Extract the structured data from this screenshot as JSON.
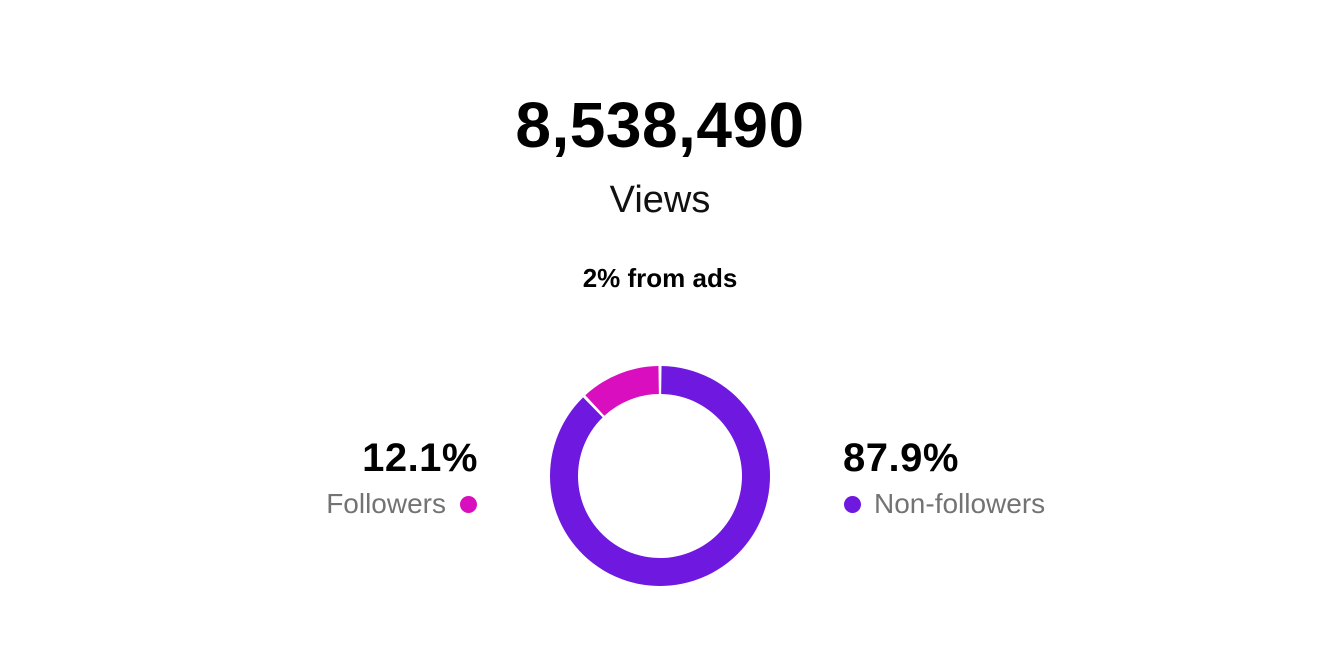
{
  "summary": {
    "total_views": "8,538,490",
    "views_label": "Views",
    "ads_note": "2% from ads"
  },
  "colors": {
    "followers": "#d90fbf",
    "non_followers": "#6f18df",
    "background": "#ffffff"
  },
  "chart_data": {
    "type": "pie",
    "variant": "donut",
    "categories": [
      "Followers",
      "Non-followers"
    ],
    "values": [
      12.1,
      87.9
    ],
    "value_labels": [
      "12.1%",
      "87.9%"
    ],
    "colors": [
      "#d90fbf",
      "#6f18df"
    ]
  },
  "legend": {
    "followers": {
      "percent": "12.1%",
      "label": "Followers"
    },
    "non_followers": {
      "percent": "87.9%",
      "label": "Non-followers"
    }
  }
}
